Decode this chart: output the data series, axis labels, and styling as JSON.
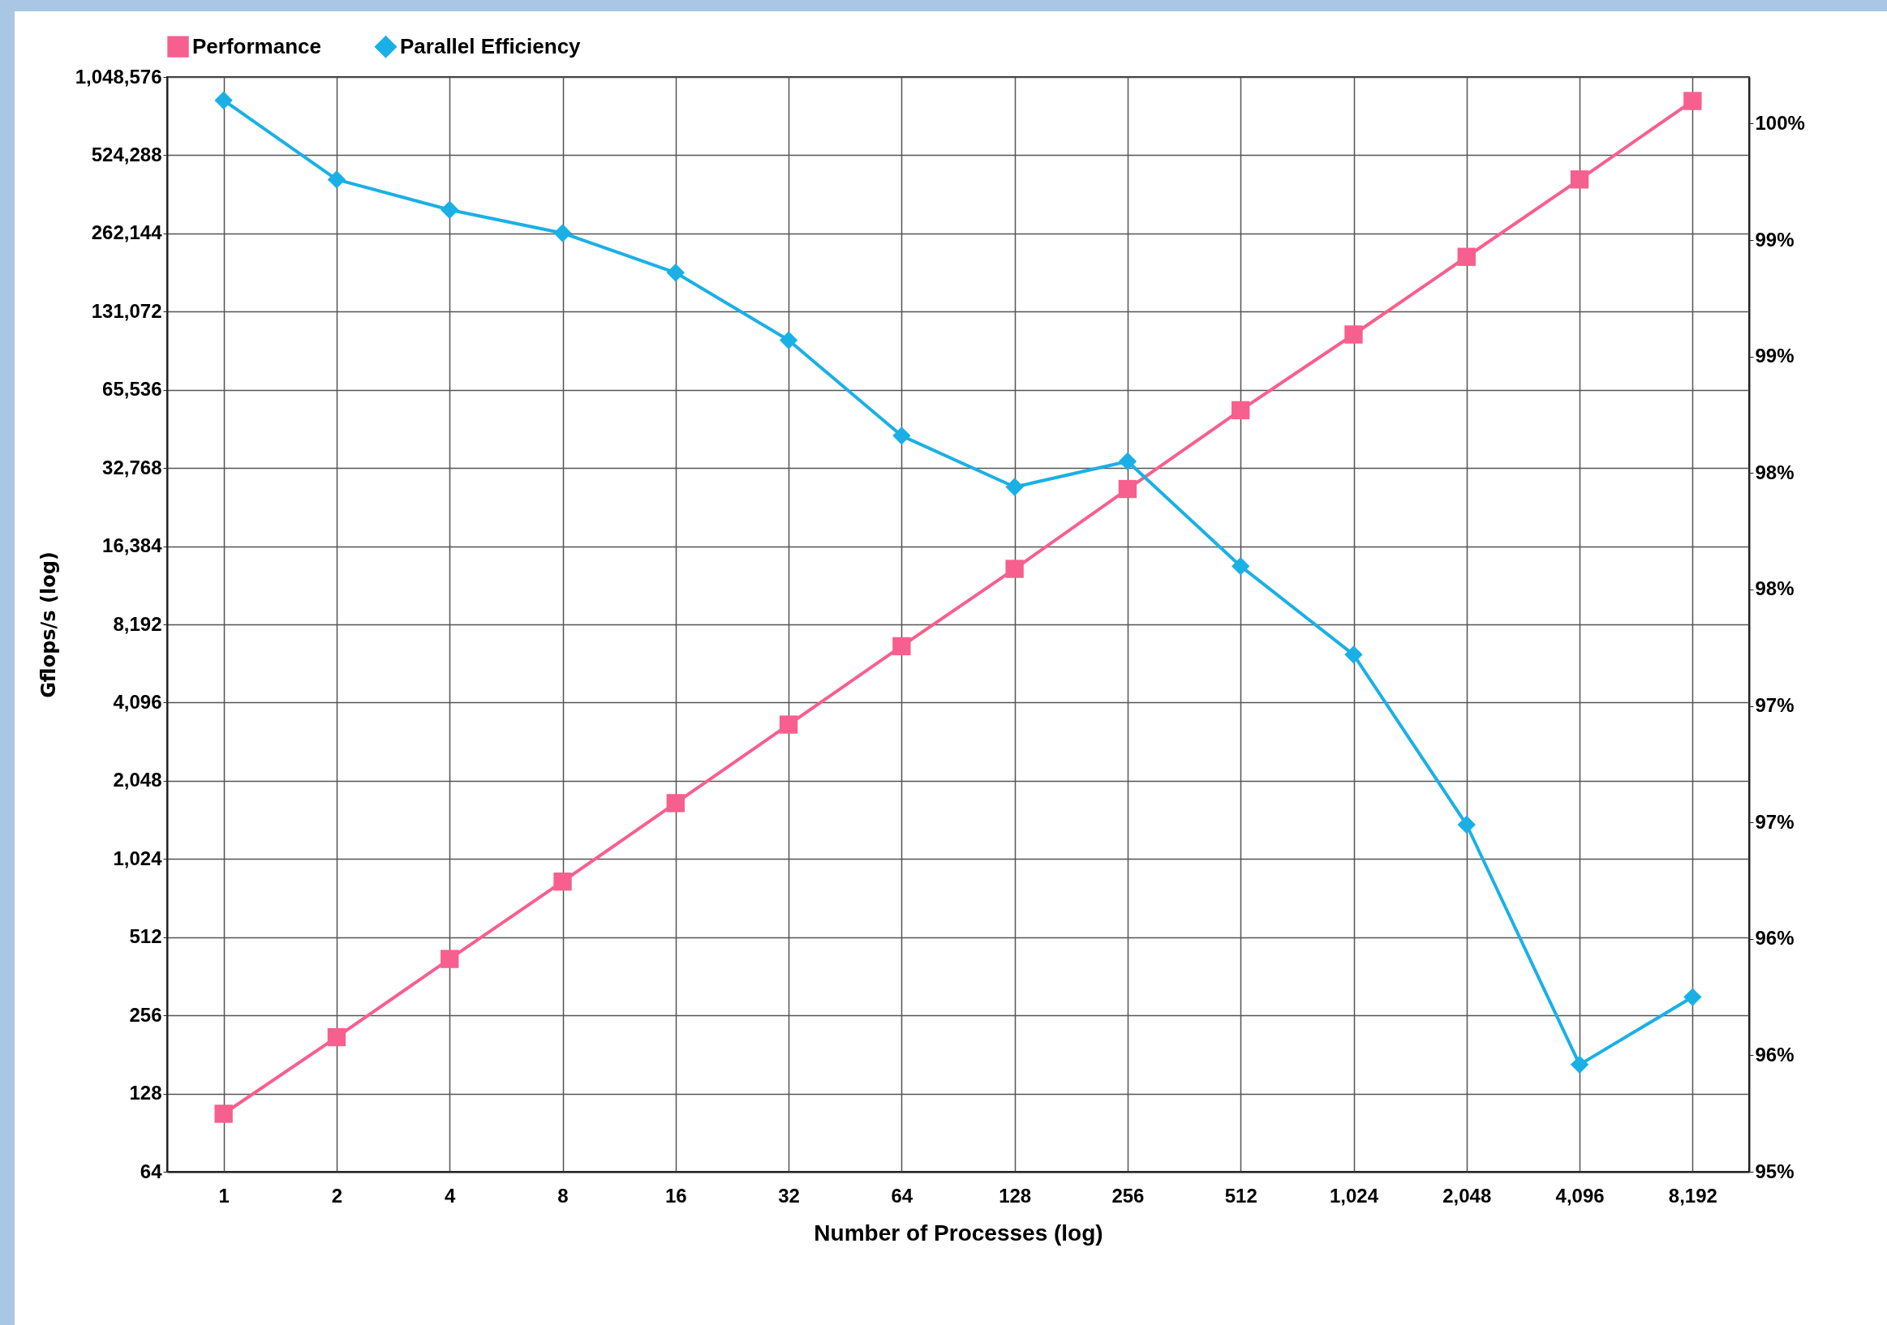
{
  "chart_data": {
    "type": "line",
    "xlabel": "Number of Processes (log)",
    "ylabel": "Gflops/s (log)",
    "categories": [
      "1",
      "2",
      "4",
      "8",
      "16",
      "32",
      "64",
      "128",
      "256",
      "512",
      "1,024",
      "2,048",
      "4,096",
      "8,192"
    ],
    "series": [
      {
        "name": "Performance",
        "color": "#f75f8e",
        "marker": "square",
        "values": [
          107,
          211,
          422,
          838,
          1680,
          3370,
          6750,
          13400,
          27200,
          54700,
          107000,
          213000,
          423000,
          848000
        ]
      },
      {
        "name": "Parallel Efficiency",
        "color": "#1ab0e6",
        "marker": "diamond",
        "axis": "y2",
        "values": [
          99.6,
          99.26,
          99.13,
          99.03,
          98.86,
          98.57,
          98.16,
          97.94,
          98.05,
          97.6,
          97.22,
          96.49,
          95.46,
          95.75
        ]
      }
    ],
    "log": "y",
    "ylim": [
      64,
      1048576
    ],
    "yticks": [
      64,
      128,
      256,
      512,
      {
        "value": 1024,
        "label": "1,024"
      },
      {
        "value": 2048,
        "label": "2,048"
      },
      {
        "value": 4096,
        "label": "4,096"
      },
      {
        "value": 8192,
        "label": "8,192"
      },
      {
        "value": 16384,
        "label": "16,384"
      },
      {
        "value": 32768,
        "label": "32,768"
      },
      {
        "value": 65536,
        "label": "65,536"
      },
      {
        "value": 131072,
        "label": "131,072"
      },
      {
        "value": 262144,
        "label": "262,144"
      },
      {
        "value": 524288,
        "label": "524,288"
      },
      {
        "value": 1048576,
        "label": "1,048,576"
      }
    ],
    "y2lim": [
      95,
      99.7
    ],
    "y2ticks": [
      {
        "value": 95,
        "label": "95%"
      },
      {
        "value": 95.5,
        "label": "96%"
      },
      {
        "value": 96,
        "label": "96%"
      },
      {
        "value": 96.5,
        "label": "97%"
      },
      {
        "value": 97,
        "label": "97%"
      },
      {
        "value": 97.5,
        "label": "98%"
      },
      {
        "value": 98,
        "label": "98%"
      },
      {
        "value": 98.5,
        "label": "99%"
      },
      {
        "value": 99,
        "label": "99%"
      },
      {
        "value": 99.5,
        "label": "100%"
      }
    ],
    "grid": true,
    "legend": "top",
    "line_style": "solid"
  }
}
